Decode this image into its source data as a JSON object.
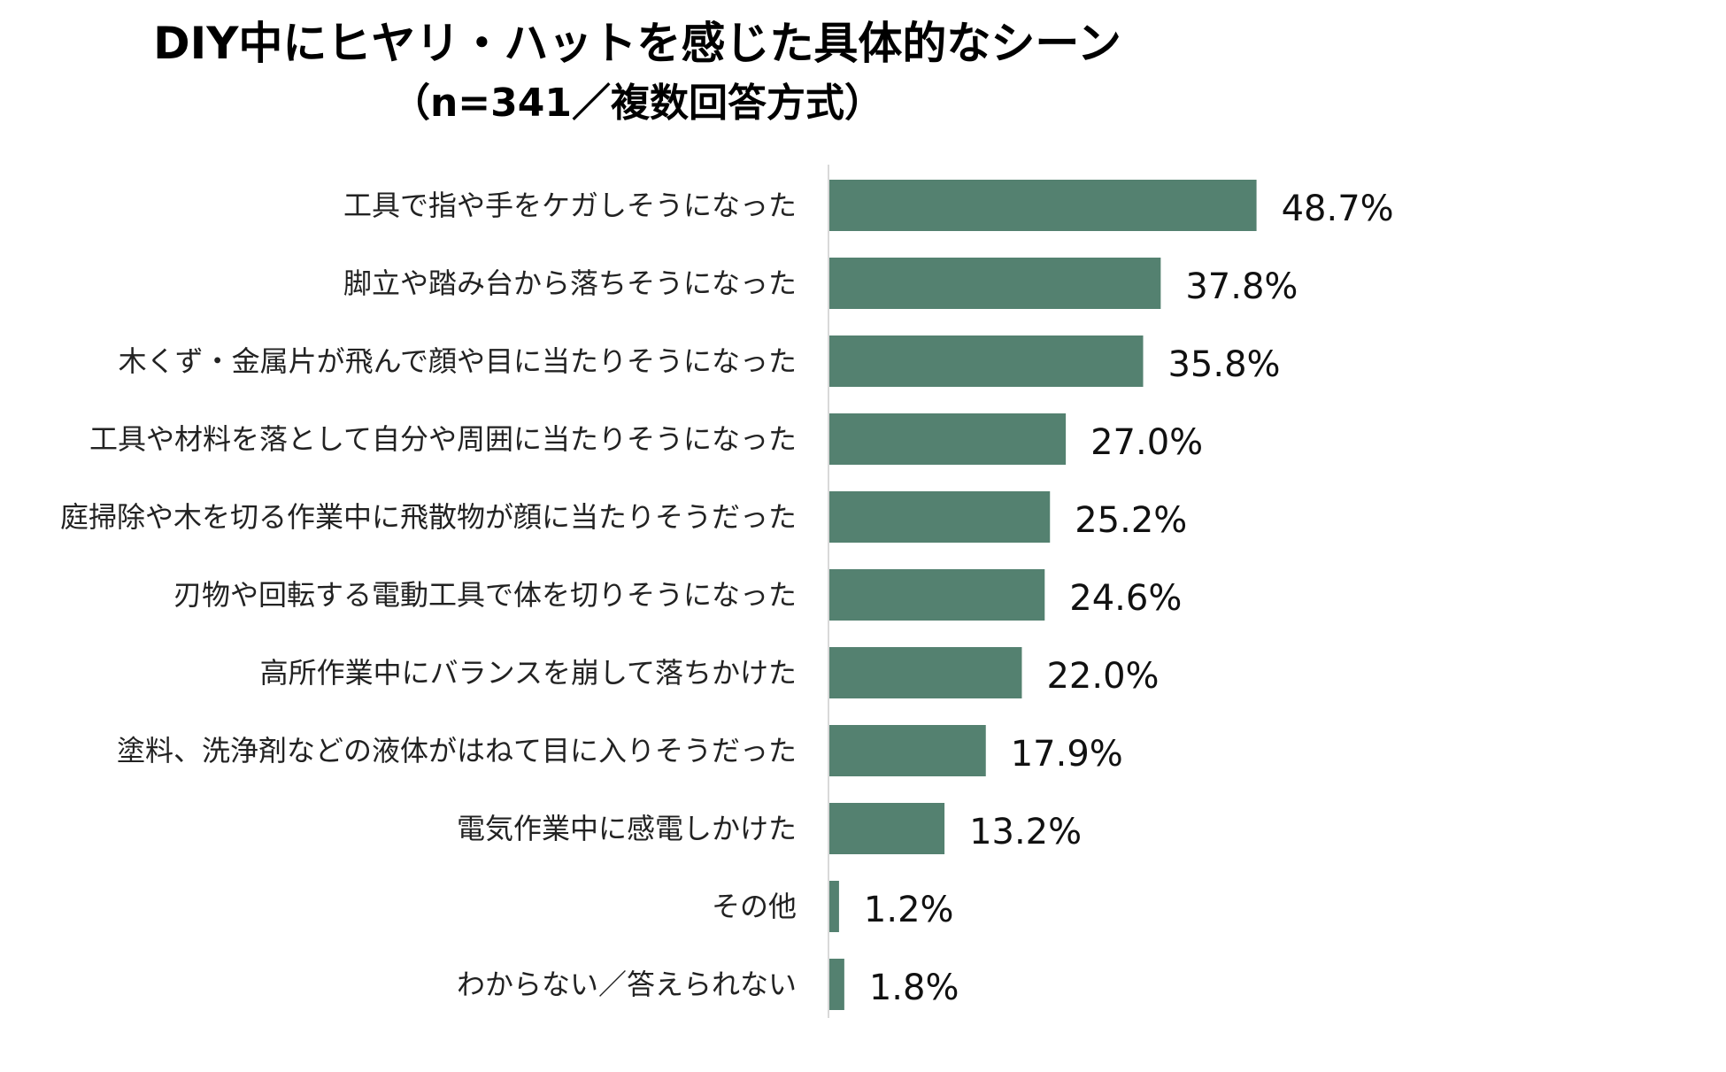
{
  "chart_data": {
    "type": "bar",
    "orientation": "horizontal",
    "title": "DIY中にヒヤリ・ハットを感じた具体的なシーン",
    "subtitle": "（n=341／複数回答方式）",
    "categories": [
      "工具で指や手をケガしそうになった",
      "脚立や踏み台から落ちそうになった",
      "木くず・金属片が飛んで顔や目に当たりそうになった",
      "工具や材料を落として自分や周囲に当たりそうになった",
      "庭掃除や木を切る作業中に飛散物が顔に当たりそうだった",
      "刃物や回転する電動工具で体を切りそうになった",
      "高所作業中にバランスを崩して落ちかけた",
      "塗料、洗浄剤などの液体がはねて目に入りそうだった",
      "電気作業中に感電しかけた",
      "その他",
      "わからない／答えられない"
    ],
    "values": [
      48.7,
      37.8,
      35.8,
      27.0,
      25.2,
      24.6,
      22.0,
      17.9,
      13.2,
      1.2,
      1.8
    ],
    "value_labels": [
      "48.7%",
      "37.8%",
      "35.8%",
      "27.0%",
      "25.2%",
      "24.6%",
      "22.0%",
      "17.9%",
      "13.2%",
      "1.2%",
      "1.8%"
    ],
    "unit": "%",
    "bar_color": "#548170",
    "axis_line_color": "#d9d9d9",
    "xlim": [
      0,
      100
    ],
    "grid": false,
    "legend": "none"
  }
}
